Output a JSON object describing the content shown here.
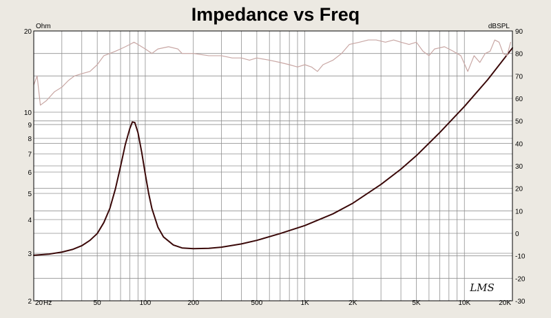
{
  "chart_data": {
    "type": "line",
    "title": "Impedance vs Freq",
    "xlabel": "Hz",
    "ylabel_left": "Ohm",
    "ylabel_right": "dBSPL",
    "x_scale": "log",
    "xlim": [
      20,
      20000
    ],
    "y_left_scale": "log",
    "y_left_lim": [
      2,
      20
    ],
    "y_right_lim": [
      -30,
      90
    ],
    "grid": true,
    "x_ticks": [
      {
        "value": 20,
        "label": "20"
      },
      {
        "value": 50,
        "label": "50"
      },
      {
        "value": 100,
        "label": "100"
      },
      {
        "value": 200,
        "label": "200"
      },
      {
        "value": 500,
        "label": "500"
      },
      {
        "value": 1000,
        "label": "1K"
      },
      {
        "value": 2000,
        "label": "2K"
      },
      {
        "value": 5000,
        "label": "5K"
      },
      {
        "value": 10000,
        "label": "10K"
      },
      {
        "value": 20000,
        "label": "20K"
      }
    ],
    "y_left_ticks": [
      {
        "value": 2,
        "label": "2"
      },
      {
        "value": 3,
        "label": "3"
      },
      {
        "value": 4,
        "label": "4"
      },
      {
        "value": 5,
        "label": "5"
      },
      {
        "value": 6,
        "label": "6"
      },
      {
        "value": 7,
        "label": "7"
      },
      {
        "value": 8,
        "label": "8"
      },
      {
        "value": 9,
        "label": "9"
      },
      {
        "value": 10,
        "label": "10"
      },
      {
        "value": 20,
        "label": "20"
      }
    ],
    "y_right_ticks": [
      {
        "value": 90,
        "label": "90"
      },
      {
        "value": 80,
        "label": "80"
      },
      {
        "value": 70,
        "label": "70"
      },
      {
        "value": 60,
        "label": "60"
      },
      {
        "value": 50,
        "label": "50"
      },
      {
        "value": 40,
        "label": "40"
      },
      {
        "value": 30,
        "label": "30"
      },
      {
        "value": 20,
        "label": "20"
      },
      {
        "value": 10,
        "label": "10"
      },
      {
        "value": 0,
        "label": "0"
      },
      {
        "value": -10,
        "label": "-10"
      },
      {
        "value": -20,
        "label": "-20"
      },
      {
        "value": -30,
        "label": "-30"
      }
    ],
    "series": [
      {
        "axis": "left",
        "color": "#3a0808",
        "points": [
          [
            20,
            2.95
          ],
          [
            25,
            2.98
          ],
          [
            30,
            3.03
          ],
          [
            35,
            3.1
          ],
          [
            40,
            3.2
          ],
          [
            45,
            3.35
          ],
          [
            50,
            3.55
          ],
          [
            55,
            3.9
          ],
          [
            60,
            4.4
          ],
          [
            65,
            5.2
          ],
          [
            70,
            6.3
          ],
          [
            75,
            7.6
          ],
          [
            80,
            8.7
          ],
          [
            83,
            9.2
          ],
          [
            86,
            9.15
          ],
          [
            90,
            8.4
          ],
          [
            95,
            7.1
          ],
          [
            100,
            5.9
          ],
          [
            105,
            5.0
          ],
          [
            110,
            4.4
          ],
          [
            120,
            3.75
          ],
          [
            130,
            3.45
          ],
          [
            150,
            3.22
          ],
          [
            170,
            3.14
          ],
          [
            200,
            3.12
          ],
          [
            250,
            3.13
          ],
          [
            300,
            3.16
          ],
          [
            400,
            3.25
          ],
          [
            500,
            3.35
          ],
          [
            700,
            3.55
          ],
          [
            1000,
            3.8
          ],
          [
            1500,
            4.2
          ],
          [
            2000,
            4.6
          ],
          [
            3000,
            5.4
          ],
          [
            4000,
            6.15
          ],
          [
            5000,
            6.9
          ],
          [
            7000,
            8.4
          ],
          [
            10000,
            10.5
          ],
          [
            14000,
            13.2
          ],
          [
            20000,
            17.3
          ]
        ]
      },
      {
        "axis": "right",
        "color": "#c8a6a3",
        "points": [
          [
            20,
            66
          ],
          [
            21,
            70
          ],
          [
            22,
            57
          ],
          [
            24,
            59
          ],
          [
            27,
            63
          ],
          [
            30,
            65
          ],
          [
            33,
            68
          ],
          [
            36,
            70
          ],
          [
            40,
            71
          ],
          [
            45,
            72
          ],
          [
            50,
            75
          ],
          [
            55,
            79
          ],
          [
            60,
            80
          ],
          [
            65,
            81
          ],
          [
            70,
            82
          ],
          [
            75,
            83
          ],
          [
            80,
            84
          ],
          [
            85,
            85
          ],
          [
            90,
            84
          ],
          [
            100,
            82
          ],
          [
            110,
            80
          ],
          [
            120,
            82
          ],
          [
            140,
            83
          ],
          [
            160,
            82
          ],
          [
            170,
            80
          ],
          [
            200,
            80
          ],
          [
            250,
            79
          ],
          [
            300,
            79
          ],
          [
            350,
            78
          ],
          [
            400,
            78
          ],
          [
            450,
            77
          ],
          [
            500,
            78
          ],
          [
            600,
            77
          ],
          [
            700,
            76
          ],
          [
            800,
            75
          ],
          [
            900,
            74
          ],
          [
            1000,
            75
          ],
          [
            1100,
            74
          ],
          [
            1200,
            72
          ],
          [
            1300,
            75
          ],
          [
            1500,
            77
          ],
          [
            1700,
            80
          ],
          [
            1900,
            84
          ],
          [
            2200,
            85
          ],
          [
            2500,
            86
          ],
          [
            2800,
            86
          ],
          [
            3200,
            85
          ],
          [
            3600,
            86
          ],
          [
            4000,
            85
          ],
          [
            4500,
            84
          ],
          [
            5000,
            85
          ],
          [
            5500,
            81
          ],
          [
            6000,
            79
          ],
          [
            6500,
            82
          ],
          [
            7500,
            83
          ],
          [
            8500,
            81
          ],
          [
            9500,
            79
          ],
          [
            10500,
            72
          ],
          [
            11500,
            79
          ],
          [
            12500,
            76
          ],
          [
            13500,
            80
          ],
          [
            14500,
            81
          ],
          [
            15500,
            86
          ],
          [
            16500,
            85
          ],
          [
            17500,
            80
          ],
          [
            18500,
            79
          ],
          [
            19500,
            85
          ]
        ]
      }
    ]
  },
  "watermark_text": "LMS"
}
